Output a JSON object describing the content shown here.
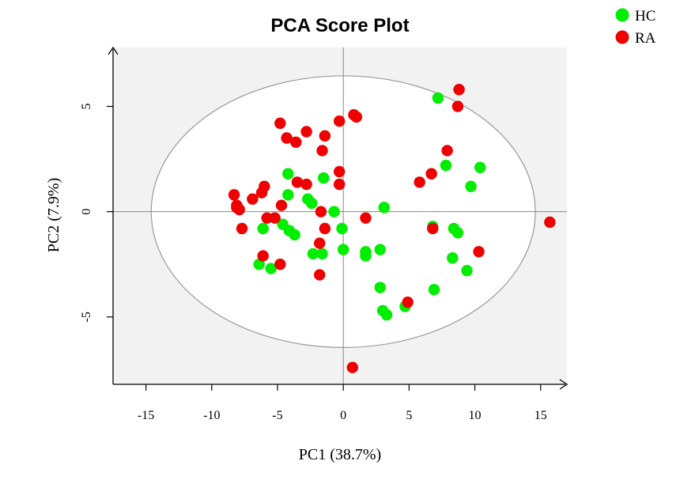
{
  "chart_data": {
    "type": "scatter",
    "title": "PCA Score Plot",
    "xlabel": "PC1 (38.7%)",
    "ylabel": "PC2 (7.9%)",
    "xlim": [
      -17.5,
      17
    ],
    "ylim": [
      -8.2,
      7.8
    ],
    "xticks": [
      -15,
      -10,
      -5,
      0,
      5,
      10,
      15
    ],
    "yticks": [
      -5,
      0,
      5
    ],
    "xtick_labels": [
      "-15",
      "-10",
      "-5",
      "0",
      "5",
      "10",
      "15"
    ],
    "ytick_labels": [
      "-5",
      "0",
      "5"
    ],
    "ellipse": {
      "center": [
        0,
        0
      ],
      "rx": 14.6,
      "ry": 6.45,
      "color": "#999999"
    },
    "background_color": "#f2f2f2",
    "grid": false,
    "legend_position": "top-right",
    "series": [
      {
        "name": "HC",
        "color": "#00ee00",
        "points": [
          [
            7.2,
            5.4
          ],
          [
            7.8,
            2.2
          ],
          [
            10.4,
            2.1
          ],
          [
            9.7,
            1.2
          ],
          [
            3.1,
            0.2
          ],
          [
            6.8,
            -0.7
          ],
          [
            8.4,
            -0.8
          ],
          [
            8.7,
            -1.0
          ],
          [
            8.3,
            -2.2
          ],
          [
            9.4,
            -2.8
          ],
          [
            6.9,
            -3.7
          ],
          [
            2.8,
            -1.8
          ],
          [
            1.7,
            -1.9
          ],
          [
            1.7,
            -2.1
          ],
          [
            2.8,
            -3.6
          ],
          [
            3.0,
            -4.7
          ],
          [
            3.3,
            -4.9
          ],
          [
            4.7,
            -4.5
          ],
          [
            -0.1,
            -0.8
          ],
          [
            0.0,
            -1.8
          ],
          [
            -0.7,
            0.0
          ],
          [
            -2.7,
            0.6
          ],
          [
            -2.4,
            0.4
          ],
          [
            -4.2,
            1.8
          ],
          [
            -4.2,
            0.8
          ],
          [
            -1.5,
            1.6
          ],
          [
            -6.1,
            -0.8
          ],
          [
            -4.6,
            -0.6
          ],
          [
            -4.1,
            -0.9
          ],
          [
            -3.7,
            -1.1
          ],
          [
            -2.3,
            -2.0
          ],
          [
            -1.6,
            -2.0
          ],
          [
            -6.4,
            -2.5
          ],
          [
            -5.5,
            -2.7
          ]
        ]
      },
      {
        "name": "RA",
        "color": "#ee0000",
        "points": [
          [
            8.8,
            5.8
          ],
          [
            8.7,
            5.0
          ],
          [
            7.9,
            2.9
          ],
          [
            6.7,
            1.8
          ],
          [
            5.8,
            1.4
          ],
          [
            15.7,
            -0.5
          ],
          [
            10.3,
            -1.9
          ],
          [
            6.8,
            -0.8
          ],
          [
            4.9,
            -4.3
          ],
          [
            0.7,
            -7.4
          ],
          [
            0.8,
            4.6
          ],
          [
            1.0,
            4.5
          ],
          [
            -0.3,
            4.3
          ],
          [
            -4.8,
            4.2
          ],
          [
            -2.8,
            3.8
          ],
          [
            -4.3,
            3.5
          ],
          [
            -3.6,
            3.3
          ],
          [
            -1.4,
            3.6
          ],
          [
            -1.6,
            2.9
          ],
          [
            -0.3,
            1.9
          ],
          [
            -0.3,
            1.3
          ],
          [
            -3.5,
            1.4
          ],
          [
            -2.8,
            1.3
          ],
          [
            -1.7,
            0.0
          ],
          [
            -1.4,
            -0.8
          ],
          [
            1.7,
            -0.3
          ],
          [
            -4.7,
            0.3
          ],
          [
            -6.0,
            1.2
          ],
          [
            -6.2,
            0.9
          ],
          [
            -6.9,
            0.6
          ],
          [
            -8.3,
            0.8
          ],
          [
            -8.1,
            0.2
          ],
          [
            -7.9,
            0.1
          ],
          [
            -8.1,
            0.3
          ],
          [
            -7.7,
            -0.8
          ],
          [
            -5.8,
            -0.3
          ],
          [
            -5.2,
            -0.3
          ],
          [
            -1.8,
            -1.5
          ],
          [
            -6.1,
            -2.1
          ],
          [
            -4.8,
            -2.5
          ],
          [
            -1.8,
            -3.0
          ]
        ]
      }
    ]
  }
}
